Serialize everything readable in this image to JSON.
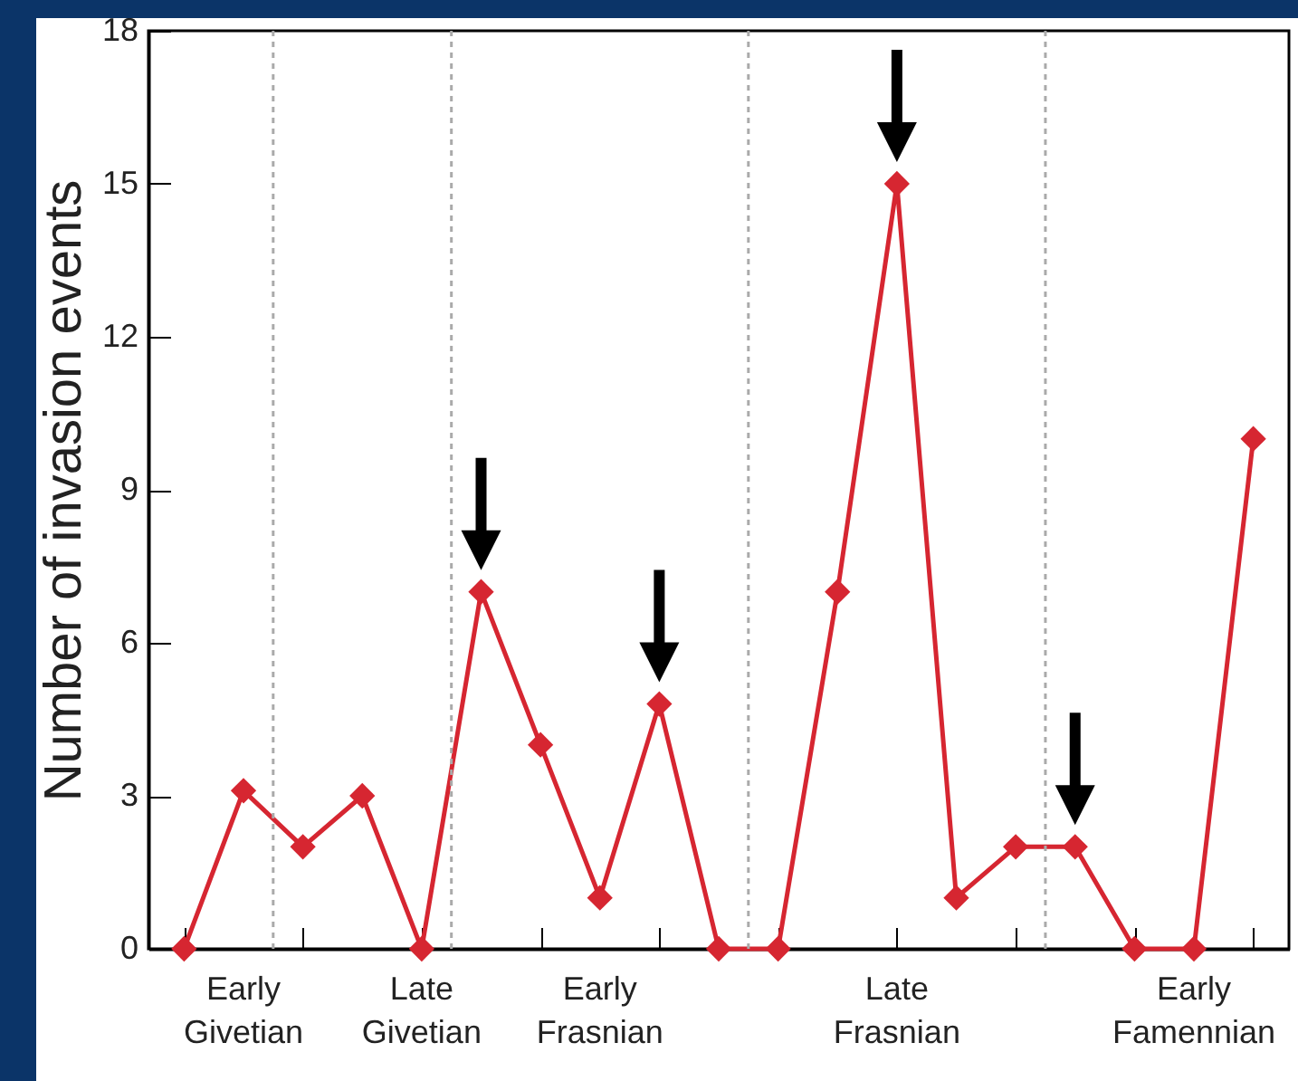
{
  "chart_data": {
    "type": "line",
    "ylabel": "Number of invasion events",
    "categories": [
      null,
      "Early Givetian",
      null,
      null,
      "Late Givetian",
      null,
      null,
      "Early Frasnian",
      null,
      null,
      null,
      null,
      "Late Frasnian",
      null,
      null,
      null,
      null,
      "Early Famennian",
      null
    ],
    "series": [
      {
        "color": "#d62631",
        "values": [
          0,
          3.1,
          2,
          3,
          0,
          7,
          4,
          1,
          4.8,
          0,
          0,
          7,
          15,
          1,
          2,
          2,
          0,
          0,
          10
        ]
      }
    ],
    "ylim": [
      0,
      18
    ],
    "yticks": [
      0,
      3,
      6,
      9,
      12,
      15,
      18
    ],
    "marker": "diamond",
    "line_style": "solid"
  }
}
